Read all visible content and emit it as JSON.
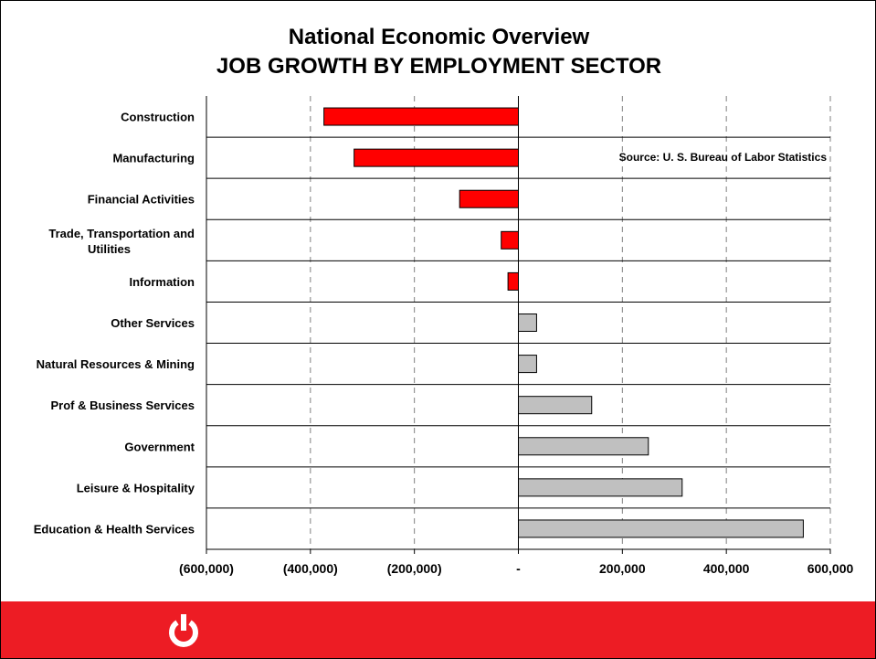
{
  "slide": {
    "title_line1": "National Economic Overview",
    "title_line2": "JOB GROWTH BY EMPLOYMENT SECTOR",
    "footer_color": "#ed1c24"
  },
  "chart_data": {
    "type": "bar",
    "orientation": "horizontal",
    "title": "National Economic Overview\nJOB GROWTH BY EMPLOYMENT SECTOR",
    "xlabel": "",
    "ylabel": "",
    "categories": [
      "Construction",
      "Manufacturing",
      "Financial Activities",
      "Trade, Transportation and Utilities",
      "Information",
      "Other Services",
      "Natural Resources & Mining",
      "Prof & Business Services",
      "Government",
      "Leisure & Hospitality",
      "Education & Health Services"
    ],
    "values": [
      -374000,
      -316000,
      -113000,
      -33000,
      -20000,
      35000,
      35000,
      141000,
      250000,
      315000,
      548000
    ],
    "xlim": [
      -600000,
      600000
    ],
    "xticks": [
      -600000,
      -400000,
      -200000,
      0,
      200000,
      400000,
      600000
    ],
    "xtick_labels": [
      "(600,000)",
      "(400,000)",
      "(200,000)",
      "-",
      "200,000",
      "400,000",
      "600,000"
    ],
    "negative_color": "#ff0000",
    "positive_color": "#c0c0c0",
    "grid": "vertical dashed",
    "annotation": "Source: U. S. Bureau of Labor Statistics"
  }
}
